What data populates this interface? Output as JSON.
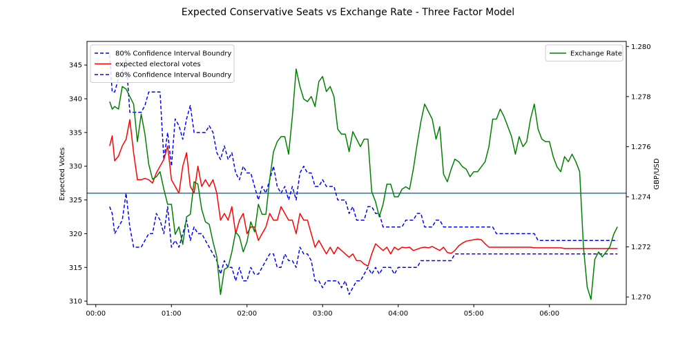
{
  "chart_data": {
    "type": "line",
    "title": "Expected Conservative Seats vs Exchange Rate - Three Factor Model",
    "xlabel": "",
    "ylabel": "Expected Votes",
    "ylabel_right": "GBP/USD",
    "x_ticks": [
      "00:00",
      "01:00",
      "02:00",
      "03:00",
      "04:00",
      "05:00",
      "06:00"
    ],
    "xlim_minutes": [
      -7,
      421
    ],
    "ylim": [
      309.5,
      348.5
    ],
    "ylim_right": [
      1.2697,
      1.2802
    ],
    "y_ticks": [
      310,
      315,
      320,
      325,
      330,
      335,
      340,
      345
    ],
    "y_ticks_right": [
      1.27,
      1.272,
      1.274,
      1.276,
      1.278,
      1.28
    ],
    "y_ticks_right_labels": [
      "1.270",
      "1.272",
      "1.274",
      "1.276",
      "1.278",
      "1.280"
    ],
    "grid": false,
    "legend_left": {
      "placement": "top-left",
      "entries": [
        {
          "label": "80% Confidence Interval Boundry",
          "color": "#0000ff",
          "style": "dashed"
        },
        {
          "label": "expected electoral votes",
          "color": "#ff0000",
          "style": "solid"
        },
        {
          "label": "80% Confidence Interval Boundry",
          "color": "#0000ff",
          "style": "dashed"
        }
      ]
    },
    "legend_right": {
      "placement": "top-right",
      "entries": [
        {
          "label": "Exchange Rate",
          "color": "#008000",
          "style": "solid"
        }
      ]
    },
    "reference_line": {
      "y": 326,
      "color": "#1f77b4"
    },
    "series": [
      {
        "name": "80% Confidence Interval Boundry",
        "axis": "left",
        "color": "#0000ff",
        "style": "dashed",
        "x": [
          11,
          13,
          15,
          18,
          21,
          24,
          27,
          30,
          33,
          36,
          39,
          42,
          45,
          48,
          51,
          54,
          57,
          60,
          63,
          66,
          69,
          72,
          75,
          78,
          81,
          84,
          87,
          90,
          93,
          96,
          99,
          102,
          105,
          108,
          111,
          114,
          117,
          120,
          123,
          126,
          129,
          132,
          135,
          138,
          141,
          144,
          147,
          150,
          153,
          156,
          159,
          162,
          165,
          168,
          171,
          174,
          177,
          180,
          183,
          186,
          189,
          192,
          195,
          198,
          201,
          204,
          207,
          210,
          213,
          216,
          219,
          222,
          225,
          228,
          231,
          234,
          237,
          240,
          243,
          246,
          249,
          252,
          255,
          258,
          261,
          264,
          267,
          270,
          273,
          276,
          279,
          282,
          285,
          288,
          291,
          294,
          297,
          300,
          303,
          306,
          309,
          312,
          315,
          318,
          321,
          324,
          327,
          330,
          333,
          336,
          339,
          342,
          345,
          348,
          351,
          354,
          357,
          360,
          363,
          366,
          369,
          372,
          375,
          378,
          381,
          384,
          387,
          390,
          393,
          396,
          399,
          402,
          405,
          408,
          411,
          414
        ],
        "values": [
          346.5,
          341,
          341,
          343,
          344,
          346,
          338,
          338,
          338,
          338,
          339,
          341,
          341,
          341,
          341,
          331,
          335,
          330,
          337,
          336,
          334,
          337,
          339,
          335,
          335,
          335,
          335,
          336,
          335,
          332,
          331,
          333,
          331,
          332,
          329,
          328,
          330,
          329,
          329,
          327,
          325,
          327,
          326,
          328,
          330,
          327,
          326,
          327,
          325,
          327,
          325,
          329,
          330,
          329,
          329,
          327,
          327,
          328,
          327,
          327,
          327,
          325,
          325,
          325,
          323,
          324,
          322,
          322,
          322,
          324,
          324,
          323,
          323,
          321,
          321,
          321,
          321,
          321,
          321,
          322,
          322,
          322,
          323,
          323,
          321,
          321,
          321,
          322,
          322,
          321,
          321,
          321,
          321,
          321,
          321,
          321,
          321,
          321,
          321,
          321,
          321,
          321,
          321,
          320,
          320,
          320,
          320,
          320,
          320,
          320,
          320,
          320,
          320,
          320,
          319,
          319,
          319,
          319,
          319,
          319,
          319,
          319,
          319,
          319,
          319,
          319,
          319,
          319,
          319,
          319,
          319,
          319,
          319,
          319,
          319,
          319
        ]
      },
      {
        "name": "expected electoral votes",
        "axis": "left",
        "color": "#ff0000",
        "style": "solid",
        "x": [
          11,
          13,
          15,
          18,
          21,
          24,
          27,
          30,
          33,
          36,
          39,
          42,
          45,
          48,
          51,
          54,
          57,
          60,
          63,
          66,
          69,
          72,
          75,
          78,
          81,
          84,
          87,
          90,
          93,
          96,
          99,
          102,
          105,
          108,
          111,
          114,
          117,
          120,
          123,
          126,
          129,
          132,
          135,
          138,
          141,
          144,
          147,
          150,
          153,
          156,
          159,
          162,
          165,
          168,
          171,
          174,
          177,
          180,
          183,
          186,
          189,
          192,
          195,
          198,
          201,
          204,
          207,
          210,
          213,
          216,
          219,
          222,
          225,
          228,
          231,
          234,
          237,
          240,
          243,
          246,
          249,
          252,
          255,
          258,
          261,
          264,
          267,
          270,
          273,
          276,
          279,
          282,
          285,
          288,
          291,
          294,
          297,
          300,
          303,
          306,
          309,
          312,
          315,
          318,
          321,
          324,
          327,
          330,
          333,
          336,
          339,
          342,
          345,
          348,
          351,
          354,
          357,
          360,
          363,
          366,
          369,
          372,
          375,
          378,
          381,
          384,
          387,
          390,
          393,
          396,
          399,
          402,
          405,
          408,
          411,
          414
        ],
        "values": [
          333,
          334.5,
          330.8,
          331.5,
          333,
          334,
          336.9,
          332,
          328,
          328,
          328.2,
          328,
          327.5,
          329,
          330,
          331,
          333,
          328,
          327,
          326,
          330,
          332,
          327,
          326,
          330,
          327,
          328,
          327,
          328,
          326,
          322,
          323,
          322,
          324,
          320,
          322,
          323,
          320,
          321,
          321,
          319,
          320,
          321,
          323,
          322,
          322,
          324,
          323,
          322,
          322,
          320,
          323,
          322,
          322,
          320,
          318,
          319,
          318,
          317,
          318,
          317,
          318,
          317.5,
          317,
          316.5,
          317,
          316,
          316,
          315.5,
          315.2,
          317,
          318.5,
          318,
          317.5,
          318,
          317,
          318,
          317.6,
          318,
          317.9,
          318,
          317.5,
          317.7,
          317.9,
          318,
          317.9,
          318.1,
          317.8,
          317.5,
          318,
          317.2,
          317.1,
          317.5,
          318.2,
          318.6,
          318.9,
          319,
          319.1,
          319.2,
          319.1,
          318.5,
          318,
          318,
          318,
          318,
          318,
          318,
          318,
          318,
          318,
          318,
          318,
          318,
          317.9,
          317.9,
          317.9,
          317.9,
          317.9,
          317.9,
          317.9,
          317.9,
          317.8,
          317.8,
          317.8,
          317.8,
          317.8,
          317.8,
          317.8,
          317.8,
          317.8,
          317.8,
          317.8,
          317.8,
          317.8,
          317.8,
          317.8
        ]
      },
      {
        "name": "80% Confidence Interval Boundry",
        "axis": "left",
        "color": "#0000ff",
        "style": "dashed",
        "x": [
          11,
          13,
          15,
          18,
          21,
          24,
          27,
          30,
          33,
          36,
          39,
          42,
          45,
          48,
          51,
          54,
          57,
          60,
          63,
          66,
          69,
          72,
          75,
          78,
          81,
          84,
          87,
          90,
          93,
          96,
          99,
          102,
          105,
          108,
          111,
          114,
          117,
          120,
          123,
          126,
          129,
          132,
          135,
          138,
          141,
          144,
          147,
          150,
          153,
          156,
          159,
          162,
          165,
          168,
          171,
          174,
          177,
          180,
          183,
          186,
          189,
          192,
          195,
          198,
          201,
          204,
          207,
          210,
          213,
          216,
          219,
          222,
          225,
          228,
          231,
          234,
          237,
          240,
          243,
          246,
          249,
          252,
          255,
          258,
          261,
          264,
          267,
          270,
          273,
          276,
          279,
          282,
          285,
          288,
          291,
          294,
          297,
          300,
          303,
          306,
          309,
          312,
          315,
          318,
          321,
          324,
          327,
          330,
          333,
          336,
          339,
          342,
          345,
          348,
          351,
          354,
          357,
          360,
          363,
          366,
          369,
          372,
          375,
          378,
          381,
          384,
          387,
          390,
          393,
          396,
          399,
          402,
          405,
          408,
          411,
          414
        ],
        "values": [
          324,
          323,
          320,
          321,
          322,
          326,
          321,
          318,
          318,
          318,
          319,
          320,
          320,
          323,
          322,
          320,
          324,
          318,
          319,
          318,
          320,
          322,
          319,
          321,
          320,
          320,
          319,
          318,
          317,
          316,
          314,
          316,
          315,
          315,
          313,
          315,
          313,
          313,
          315,
          314,
          314,
          315,
          316,
          317,
          317,
          315,
          315,
          317,
          316,
          316,
          315,
          318,
          317,
          317,
          316,
          313,
          313,
          312,
          313,
          313,
          313,
          313,
          312,
          313,
          311,
          312,
          313,
          313,
          314,
          315,
          314,
          315,
          314,
          315,
          315,
          315,
          314,
          315,
          315,
          315,
          315,
          315,
          315,
          316,
          316,
          316,
          316,
          316,
          316,
          316,
          316,
          316,
          317,
          317,
          317,
          317,
          317,
          317,
          317,
          317,
          317,
          317,
          317,
          317,
          317,
          317,
          317,
          317,
          317,
          317,
          317,
          317,
          317,
          317,
          317,
          317,
          317,
          317,
          317,
          317,
          317,
          317,
          317,
          317,
          317,
          317,
          317,
          317,
          317,
          317,
          317,
          317,
          317,
          317,
          317,
          317
        ]
      },
      {
        "name": "Exchange Rate",
        "axis": "right",
        "color": "#008000",
        "style": "solid",
        "x": [
          11,
          13,
          15,
          18,
          21,
          24,
          27,
          30,
          33,
          36,
          39,
          42,
          45,
          48,
          51,
          54,
          57,
          60,
          63,
          66,
          69,
          72,
          75,
          78,
          81,
          84,
          87,
          90,
          93,
          96,
          99,
          102,
          105,
          108,
          111,
          114,
          117,
          120,
          123,
          126,
          129,
          132,
          135,
          138,
          141,
          144,
          147,
          150,
          153,
          156,
          159,
          162,
          165,
          168,
          171,
          174,
          177,
          180,
          183,
          186,
          189,
          192,
          195,
          198,
          201,
          204,
          207,
          210,
          213,
          216,
          219,
          222,
          225,
          228,
          231,
          234,
          237,
          240,
          243,
          246,
          249,
          252,
          255,
          258,
          261,
          264,
          267,
          270,
          273,
          276,
          279,
          282,
          285,
          288,
          291,
          294,
          297,
          300,
          303,
          306,
          309,
          312,
          315,
          318,
          321,
          324,
          327,
          330,
          333,
          336,
          339,
          342,
          345,
          348,
          351,
          354,
          357,
          360,
          363,
          366,
          369,
          372,
          375,
          378,
          381,
          384,
          387,
          390,
          393,
          396,
          399,
          402,
          405,
          408,
          411,
          414
        ],
        "values": [
          1.2778,
          1.2775,
          1.2776,
          1.2775,
          1.2784,
          1.2783,
          1.278,
          1.2777,
          1.2762,
          1.2773,
          1.2765,
          1.2753,
          1.2747,
          1.2748,
          1.275,
          1.2743,
          1.2737,
          1.2737,
          1.2725,
          1.2728,
          1.2721,
          1.2732,
          1.2733,
          1.2746,
          1.2745,
          1.2735,
          1.273,
          1.2729,
          1.2722,
          1.2716,
          1.2701,
          1.2711,
          1.2712,
          1.2718,
          1.2726,
          1.2724,
          1.2718,
          1.2722,
          1.273,
          1.2726,
          1.2737,
          1.2733,
          1.2733,
          1.2747,
          1.2758,
          1.2762,
          1.2764,
          1.2764,
          1.2757,
          1.2772,
          1.2791,
          1.2784,
          1.2779,
          1.2778,
          1.278,
          1.2776,
          1.2786,
          1.2788,
          1.2782,
          1.2784,
          1.278,
          1.2767,
          1.2765,
          1.2765,
          1.2758,
          1.2766,
          1.2763,
          1.276,
          1.2763,
          1.2763,
          1.2742,
          1.2738,
          1.2732,
          1.2737,
          1.2745,
          1.2745,
          1.274,
          1.274,
          1.2743,
          1.2744,
          1.2743,
          1.2751,
          1.2761,
          1.277,
          1.2777,
          1.2774,
          1.2771,
          1.2763,
          1.2768,
          1.2749,
          1.2746,
          1.2751,
          1.2755,
          1.2754,
          1.2752,
          1.2751,
          1.2748,
          1.275,
          1.275,
          1.2752,
          1.2754,
          1.276,
          1.2771,
          1.2771,
          1.2775,
          1.2772,
          1.2768,
          1.2764,
          1.2757,
          1.2764,
          1.276,
          1.2762,
          1.2771,
          1.2777,
          1.2767,
          1.2763,
          1.2762,
          1.2762,
          1.2756,
          1.2752,
          1.275,
          1.2756,
          1.2754,
          1.2757,
          1.2754,
          1.275,
          1.272,
          1.2704,
          1.2699,
          1.2715,
          1.2718,
          1.2716,
          1.2718,
          1.272,
          1.2725,
          1.2728
        ]
      }
    ]
  }
}
